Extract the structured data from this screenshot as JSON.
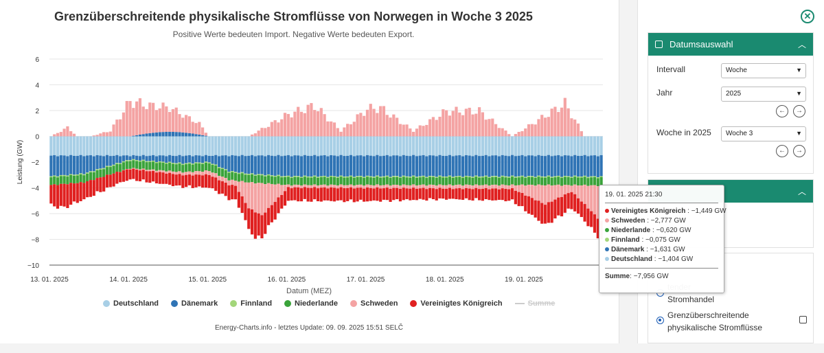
{
  "chart_data": {
    "type": "bar",
    "stacked": true,
    "title": "Grenzüberschreitende physikalische Stromflüsse von Norwegen in Woche 3 2025",
    "subtitle": "Positive Werte bedeuten Import. Negative Werte bedeuten Export.",
    "xlabel": "Datum (MEZ)",
    "ylabel": "Leistung (GW)",
    "ylim": [
      -10,
      6
    ],
    "yticks": [
      "6",
      "4",
      "2",
      "0",
      "−2",
      "−4",
      "−6",
      "−8",
      "−10"
    ],
    "yticks_values": [
      6,
      4,
      2,
      0,
      -2,
      -4,
      -6,
      -8,
      -10
    ],
    "xtick_labels": [
      "13. 01. 2025",
      "14. 01. 2025",
      "15. 01. 2025",
      "16. 01. 2025",
      "17. 01. 2025",
      "18. 01. 2025",
      "19. 01. 2025"
    ],
    "x_day_start": "13. 01. 2025",
    "x_hours": 168,
    "series": [
      {
        "name": "Deutschland",
        "color": "#a8cfe6",
        "day_profile": [
          -1.5,
          -1.5,
          -1.5,
          -1.5,
          -1.5,
          -1.5,
          -1.45
        ]
      },
      {
        "name": "Dänemark",
        "color": "#2f74b5",
        "knots_x": [
          0,
          10,
          24,
          40,
          48,
          54,
          60,
          72,
          96,
          120,
          144,
          160,
          167
        ],
        "knots_y": [
          -1.6,
          -1.4,
          -0.3,
          -0.6,
          -0.5,
          -1.2,
          -1.4,
          -1.6,
          -1.6,
          -1.6,
          -1.6,
          -1.6,
          -1.63
        ]
      },
      {
        "name": "Finnland",
        "color": "#a3d67a",
        "knots_x": [
          0,
          167
        ],
        "knots_y": [
          -0.08,
          -0.08
        ]
      },
      {
        "name": "Niederlande",
        "color": "#3aa33a",
        "knots_x": [
          0,
          20,
          48,
          60,
          96,
          144,
          167
        ],
        "knots_y": [
          -0.6,
          -0.6,
          -0.6,
          -0.6,
          -0.6,
          -0.6,
          -0.62
        ]
      },
      {
        "name": "Schweden",
        "color": "#f4a3a3",
        "positive_knots_x": [
          0,
          5,
          8,
          12,
          18,
          24,
          30,
          36,
          40,
          45,
          48,
          60,
          72,
          80,
          88,
          96,
          100,
          110,
          120,
          130,
          140,
          148,
          156,
          162,
          167
        ],
        "positive_knots_y": [
          0,
          0.8,
          0,
          0,
          0.5,
          3.2,
          2.5,
          2.2,
          1.6,
          1.0,
          0,
          0,
          2.0,
          2.8,
          0.5,
          2.5,
          2.6,
          0.5,
          2.3,
          2.3,
          0,
          1.5,
          3.0,
          0,
          0
        ],
        "negative_knots_x": [
          0,
          20,
          56,
          60,
          64,
          72,
          140,
          150,
          158,
          162,
          167
        ],
        "negative_knots_y": [
          0,
          0,
          -0.4,
          -2.0,
          -2.5,
          -0.2,
          -0.3,
          -1.5,
          -0.5,
          -1.5,
          -2.78
        ]
      },
      {
        "name": "Vereinigtes Königreich",
        "color": "#e02020",
        "knots_x": [
          0,
          4,
          10,
          20,
          24,
          40,
          52,
          58,
          62,
          66,
          72,
          96,
          120,
          140,
          150,
          160,
          167
        ],
        "knots_y": [
          -1.6,
          -1.8,
          -1.3,
          -0.9,
          -0.8,
          -0.9,
          -1.0,
          -1.2,
          -2.0,
          -1.4,
          -1.0,
          -1.0,
          -0.8,
          -0.9,
          -1.6,
          -1.2,
          -1.45
        ]
      }
    ],
    "sum_series": {
      "name": "Summe",
      "visible": false
    },
    "tooltip": {
      "date": "19. 01. 2025 21:30",
      "rows": [
        {
          "name": "Vereinigtes Königreich",
          "value": "−1,449 GW",
          "color": "#e02020"
        },
        {
          "name": "Schweden",
          "value": "−2,777 GW",
          "color": "#f4a3a3"
        },
        {
          "name": "Niederlande",
          "value": "−0,620 GW",
          "color": "#3aa33a"
        },
        {
          "name": "Finnland",
          "value": "−0,075 GW",
          "color": "#a3d67a"
        },
        {
          "name": "Dänemark",
          "value": "−1,631 GW",
          "color": "#2f74b5"
        },
        {
          "name": "Deutschland",
          "value": "−1,404 GW",
          "color": "#a8cfe6"
        }
      ],
      "sum_label": "Summe",
      "sum_value": "−7,956 GW"
    },
    "legend_position": "bottom",
    "grid": true
  },
  "credits": "Energy-Charts.info - letztes Update: 09. 09. 2025 15:51 SELČ",
  "legend": {
    "items": [
      {
        "label": "Deutschland",
        "color": "#a8cfe6"
      },
      {
        "label": "Dänemark",
        "color": "#2f74b5"
      },
      {
        "label": "Finnland",
        "color": "#a3d67a"
      },
      {
        "label": "Niederlande",
        "color": "#3aa33a"
      },
      {
        "label": "Schweden",
        "color": "#f4a3a3"
      },
      {
        "label": "Vereinigtes Königreich",
        "color": "#e02020"
      }
    ],
    "sum_label": "Summe"
  },
  "sidebar": {
    "date_header": "Datumsauswahl",
    "interval_label": "Intervall",
    "interval_value": "Woche",
    "year_label": "Jahr",
    "year_value": "2025",
    "week_label": "Woche in 2025",
    "week_value": "Woche 3",
    "radio1_label": "tender\nStromhandel",
    "radio2_label": "Grenzüberschreitende physikalische Stromflüsse",
    "accent_color": "#1a8a70"
  }
}
